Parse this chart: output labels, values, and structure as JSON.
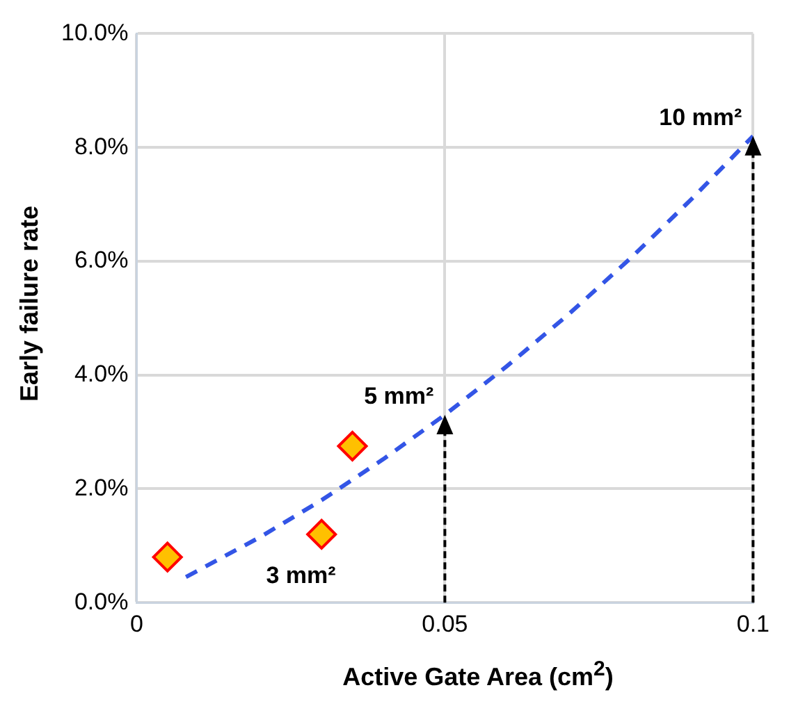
{
  "chart_data": {
    "type": "scatter",
    "xlabel": "Active Gate Area (cm$^{2}$)",
    "ylabel": "Early failure rate",
    "xlim": [
      0,
      0.1
    ],
    "xticks": [
      0,
      0.05,
      0.1
    ],
    "ylim": [
      0,
      10
    ],
    "yticks": [
      {
        "value": 0,
        "label": "0.0%"
      },
      {
        "value": 2,
        "label": "2.0%"
      },
      {
        "value": 4,
        "label": "4.0%"
      },
      {
        "value": 6,
        "label": "6.0%"
      },
      {
        "value": 8,
        "label": "8.0%"
      },
      {
        "value": 10,
        "label": "10.0%"
      }
    ],
    "grid": true,
    "legend": false,
    "series": [
      {
        "color": "#ffc000",
        "marker": "diamond",
        "x": [
          0.005,
          0.03,
          0.035
        ],
        "values": [
          0.8,
          1.2,
          2.75
        ]
      },
      {
        "type": "line",
        "color": "#3355e6",
        "marker": "none",
        "line_style": "dashed",
        "x": [
          0.008,
          0.02,
          0.03,
          0.04,
          0.05,
          0.06,
          0.07,
          0.08,
          0.09,
          0.1
        ],
        "values": [
          0.45,
          1.15,
          1.8,
          2.52,
          3.3,
          4.15,
          5.06,
          6.04,
          7.09,
          8.2
        ]
      }
    ],
    "annotations": [
      {
        "text": "5 mm²",
        "x": 0.05,
        "y": 3.3
      },
      {
        "text": "10 mm²",
        "x": 0.1,
        "y": 8.2
      },
      "3 mm²"
    ]
  }
}
